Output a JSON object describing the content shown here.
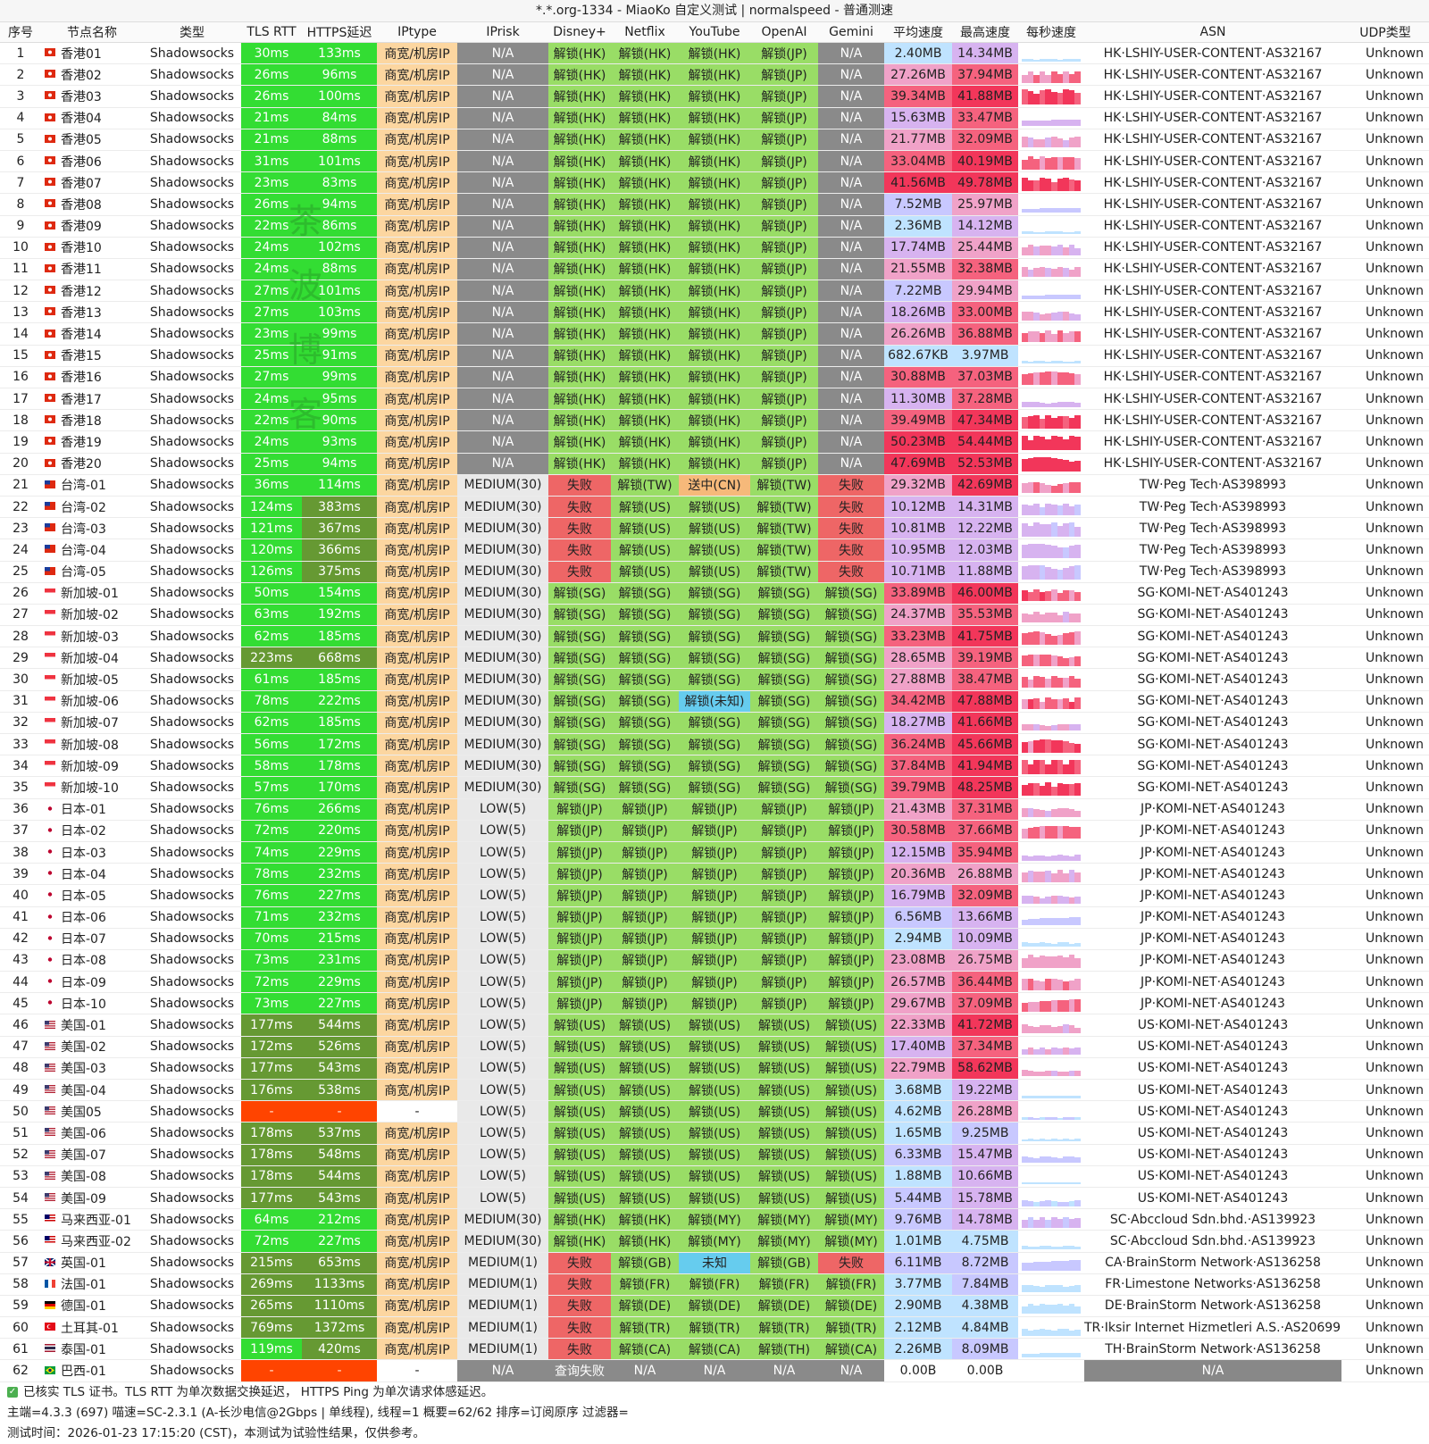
{
  "title": "*.*.org-1334 - MiaoKo 自定义测试 | normalspeed - 普通测速",
  "watermark": [
    "茶",
    "波",
    "博",
    "客"
  ],
  "headers": [
    "序号",
    "节点名称",
    "类型",
    "TLS RTT",
    "HTTPS延迟",
    "IPtype",
    "IPrisk",
    "Disney+",
    "Netflix",
    "YouTube",
    "OpenAI",
    "Gemini",
    "平均速度",
    "最高速度",
    "每秒速度",
    "ASN",
    "UDP类型"
  ],
  "colors": {
    "green": "#33dd33",
    "green_dark": "#44cc44",
    "olive": "#669933",
    "orange_red": "#ff4400",
    "iptype": "#fcd6a0",
    "gray": "#8a8a8a",
    "lightgray": "#e9e9e9",
    "unlock": "#99dd66",
    "fail": "#ee6666",
    "pending": "#f6b97a",
    "cyan": "#66ccee",
    "asn_gray": "#888888"
  },
  "rows": [
    [
      "1",
      "香港01",
      "Shadowsocks",
      "30ms",
      "133ms",
      "商宽/机房IP",
      "N/A",
      "解锁(HK)",
      "解锁(HK)",
      "解锁(HK)",
      "解锁(JP)",
      "N/A",
      "2.40MB",
      "14.34MB",
      "HK·LSHIY-USER-CONTENT·AS32167",
      "Unknown"
    ],
    [
      "2",
      "香港02",
      "Shadowsocks",
      "26ms",
      "96ms",
      "商宽/机房IP",
      "N/A",
      "解锁(HK)",
      "解锁(HK)",
      "解锁(HK)",
      "解锁(JP)",
      "N/A",
      "27.26MB",
      "37.94MB",
      "HK·LSHIY-USER-CONTENT·AS32167",
      "Unknown"
    ],
    [
      "3",
      "香港03",
      "Shadowsocks",
      "26ms",
      "100ms",
      "商宽/机房IP",
      "N/A",
      "解锁(HK)",
      "解锁(HK)",
      "解锁(HK)",
      "解锁(JP)",
      "N/A",
      "39.34MB",
      "41.88MB",
      "HK·LSHIY-USER-CONTENT·AS32167",
      "Unknown"
    ],
    [
      "4",
      "香港04",
      "Shadowsocks",
      "21ms",
      "84ms",
      "商宽/机房IP",
      "N/A",
      "解锁(HK)",
      "解锁(HK)",
      "解锁(HK)",
      "解锁(JP)",
      "N/A",
      "15.63MB",
      "33.47MB",
      "HK·LSHIY-USER-CONTENT·AS32167",
      "Unknown"
    ],
    [
      "5",
      "香港05",
      "Shadowsocks",
      "21ms",
      "88ms",
      "商宽/机房IP",
      "N/A",
      "解锁(HK)",
      "解锁(HK)",
      "解锁(HK)",
      "解锁(JP)",
      "N/A",
      "21.77MB",
      "32.09MB",
      "HK·LSHIY-USER-CONTENT·AS32167",
      "Unknown"
    ],
    [
      "6",
      "香港06",
      "Shadowsocks",
      "31ms",
      "101ms",
      "商宽/机房IP",
      "N/A",
      "解锁(HK)",
      "解锁(HK)",
      "解锁(HK)",
      "解锁(JP)",
      "N/A",
      "33.04MB",
      "40.19MB",
      "HK·LSHIY-USER-CONTENT·AS32167",
      "Unknown"
    ],
    [
      "7",
      "香港07",
      "Shadowsocks",
      "23ms",
      "83ms",
      "商宽/机房IP",
      "N/A",
      "解锁(HK)",
      "解锁(HK)",
      "解锁(HK)",
      "解锁(JP)",
      "N/A",
      "41.56MB",
      "49.78MB",
      "HK·LSHIY-USER-CONTENT·AS32167",
      "Unknown"
    ],
    [
      "8",
      "香港08",
      "Shadowsocks",
      "26ms",
      "94ms",
      "商宽/机房IP",
      "N/A",
      "解锁(HK)",
      "解锁(HK)",
      "解锁(HK)",
      "解锁(JP)",
      "N/A",
      "7.52MB",
      "25.97MB",
      "HK·LSHIY-USER-CONTENT·AS32167",
      "Unknown"
    ],
    [
      "9",
      "香港09",
      "Shadowsocks",
      "22ms",
      "86ms",
      "商宽/机房IP",
      "N/A",
      "解锁(HK)",
      "解锁(HK)",
      "解锁(HK)",
      "解锁(JP)",
      "N/A",
      "2.36MB",
      "14.12MB",
      "HK·LSHIY-USER-CONTENT·AS32167",
      "Unknown"
    ],
    [
      "10",
      "香港10",
      "Shadowsocks",
      "24ms",
      "102ms",
      "商宽/机房IP",
      "N/A",
      "解锁(HK)",
      "解锁(HK)",
      "解锁(HK)",
      "解锁(JP)",
      "N/A",
      "17.74MB",
      "25.44MB",
      "HK·LSHIY-USER-CONTENT·AS32167",
      "Unknown"
    ],
    [
      "11",
      "香港11",
      "Shadowsocks",
      "24ms",
      "88ms",
      "商宽/机房IP",
      "N/A",
      "解锁(HK)",
      "解锁(HK)",
      "解锁(HK)",
      "解锁(JP)",
      "N/A",
      "21.55MB",
      "32.38MB",
      "HK·LSHIY-USER-CONTENT·AS32167",
      "Unknown"
    ],
    [
      "12",
      "香港12",
      "Shadowsocks",
      "27ms",
      "101ms",
      "商宽/机房IP",
      "N/A",
      "解锁(HK)",
      "解锁(HK)",
      "解锁(HK)",
      "解锁(JP)",
      "N/A",
      "7.22MB",
      "29.94MB",
      "HK·LSHIY-USER-CONTENT·AS32167",
      "Unknown"
    ],
    [
      "13",
      "香港13",
      "Shadowsocks",
      "27ms",
      "103ms",
      "商宽/机房IP",
      "N/A",
      "解锁(HK)",
      "解锁(HK)",
      "解锁(HK)",
      "解锁(JP)",
      "N/A",
      "18.26MB",
      "33.00MB",
      "HK·LSHIY-USER-CONTENT·AS32167",
      "Unknown"
    ],
    [
      "14",
      "香港14",
      "Shadowsocks",
      "23ms",
      "99ms",
      "商宽/机房IP",
      "N/A",
      "解锁(HK)",
      "解锁(HK)",
      "解锁(HK)",
      "解锁(JP)",
      "N/A",
      "26.26MB",
      "36.88MB",
      "HK·LSHIY-USER-CONTENT·AS32167",
      "Unknown"
    ],
    [
      "15",
      "香港15",
      "Shadowsocks",
      "25ms",
      "91ms",
      "商宽/机房IP",
      "N/A",
      "解锁(HK)",
      "解锁(HK)",
      "解锁(HK)",
      "解锁(JP)",
      "N/A",
      "682.67KB",
      "3.97MB",
      "HK·LSHIY-USER-CONTENT·AS32167",
      "Unknown"
    ],
    [
      "16",
      "香港16",
      "Shadowsocks",
      "27ms",
      "99ms",
      "商宽/机房IP",
      "N/A",
      "解锁(HK)",
      "解锁(HK)",
      "解锁(HK)",
      "解锁(JP)",
      "N/A",
      "30.88MB",
      "37.03MB",
      "HK·LSHIY-USER-CONTENT·AS32167",
      "Unknown"
    ],
    [
      "17",
      "香港17",
      "Shadowsocks",
      "24ms",
      "95ms",
      "商宽/机房IP",
      "N/A",
      "解锁(HK)",
      "解锁(HK)",
      "解锁(HK)",
      "解锁(JP)",
      "N/A",
      "11.30MB",
      "37.28MB",
      "HK·LSHIY-USER-CONTENT·AS32167",
      "Unknown"
    ],
    [
      "18",
      "香港18",
      "Shadowsocks",
      "22ms",
      "90ms",
      "商宽/机房IP",
      "N/A",
      "解锁(HK)",
      "解锁(HK)",
      "解锁(HK)",
      "解锁(JP)",
      "N/A",
      "39.49MB",
      "47.34MB",
      "HK·LSHIY-USER-CONTENT·AS32167",
      "Unknown"
    ],
    [
      "19",
      "香港19",
      "Shadowsocks",
      "24ms",
      "93ms",
      "商宽/机房IP",
      "N/A",
      "解锁(HK)",
      "解锁(HK)",
      "解锁(HK)",
      "解锁(JP)",
      "N/A",
      "50.23MB",
      "54.44MB",
      "HK·LSHIY-USER-CONTENT·AS32167",
      "Unknown"
    ],
    [
      "20",
      "香港20",
      "Shadowsocks",
      "25ms",
      "94ms",
      "商宽/机房IP",
      "N/A",
      "解锁(HK)",
      "解锁(HK)",
      "解锁(HK)",
      "解锁(JP)",
      "N/A",
      "47.69MB",
      "52.53MB",
      "HK·LSHIY-USER-CONTENT·AS32167",
      "Unknown"
    ],
    [
      "21",
      "台湾-01",
      "Shadowsocks",
      "36ms",
      "114ms",
      "商宽/机房IP",
      "MEDIUM(30)",
      "失败",
      "解锁(TW)",
      "送中(CN)",
      "解锁(TW)",
      "失败",
      "29.32MB",
      "42.69MB",
      "TW·Peg Tech·AS398993",
      "Unknown"
    ],
    [
      "22",
      "台湾-02",
      "Shadowsocks",
      "124ms",
      "383ms",
      "商宽/机房IP",
      "MEDIUM(30)",
      "失败",
      "解锁(US)",
      "解锁(US)",
      "解锁(TW)",
      "失败",
      "10.12MB",
      "14.31MB",
      "TW·Peg Tech·AS398993",
      "Unknown"
    ],
    [
      "23",
      "台湾-03",
      "Shadowsocks",
      "121ms",
      "367ms",
      "商宽/机房IP",
      "MEDIUM(30)",
      "失败",
      "解锁(US)",
      "解锁(US)",
      "解锁(TW)",
      "失败",
      "10.81MB",
      "12.22MB",
      "TW·Peg Tech·AS398993",
      "Unknown"
    ],
    [
      "24",
      "台湾-04",
      "Shadowsocks",
      "120ms",
      "366ms",
      "商宽/机房IP",
      "MEDIUM(30)",
      "失败",
      "解锁(US)",
      "解锁(US)",
      "解锁(TW)",
      "失败",
      "10.95MB",
      "12.03MB",
      "TW·Peg Tech·AS398993",
      "Unknown"
    ],
    [
      "25",
      "台湾-05",
      "Shadowsocks",
      "126ms",
      "375ms",
      "商宽/机房IP",
      "MEDIUM(30)",
      "失败",
      "解锁(US)",
      "解锁(US)",
      "解锁(TW)",
      "失败",
      "10.71MB",
      "11.88MB",
      "TW·Peg Tech·AS398993",
      "Unknown"
    ],
    [
      "26",
      "新加坡-01",
      "Shadowsocks",
      "50ms",
      "154ms",
      "商宽/机房IP",
      "MEDIUM(30)",
      "解锁(SG)",
      "解锁(SG)",
      "解锁(SG)",
      "解锁(SG)",
      "解锁(SG)",
      "33.89MB",
      "46.00MB",
      "SG·KOMI-NET·AS401243",
      "Unknown"
    ],
    [
      "27",
      "新加坡-02",
      "Shadowsocks",
      "63ms",
      "192ms",
      "商宽/机房IP",
      "MEDIUM(30)",
      "解锁(SG)",
      "解锁(SG)",
      "解锁(SG)",
      "解锁(SG)",
      "解锁(SG)",
      "24.37MB",
      "35.53MB",
      "SG·KOMI-NET·AS401243",
      "Unknown"
    ],
    [
      "28",
      "新加坡-03",
      "Shadowsocks",
      "62ms",
      "185ms",
      "商宽/机房IP",
      "MEDIUM(30)",
      "解锁(SG)",
      "解锁(SG)",
      "解锁(SG)",
      "解锁(SG)",
      "解锁(SG)",
      "33.23MB",
      "41.75MB",
      "SG·KOMI-NET·AS401243",
      "Unknown"
    ],
    [
      "29",
      "新加坡-04",
      "Shadowsocks",
      "223ms",
      "668ms",
      "商宽/机房IP",
      "MEDIUM(30)",
      "解锁(SG)",
      "解锁(SG)",
      "解锁(SG)",
      "解锁(SG)",
      "解锁(SG)",
      "28.65MB",
      "39.19MB",
      "SG·KOMI-NET·AS401243",
      "Unknown"
    ],
    [
      "30",
      "新加坡-05",
      "Shadowsocks",
      "61ms",
      "185ms",
      "商宽/机房IP",
      "MEDIUM(30)",
      "解锁(SG)",
      "解锁(SG)",
      "解锁(SG)",
      "解锁(SG)",
      "解锁(SG)",
      "27.88MB",
      "38.47MB",
      "SG·KOMI-NET·AS401243",
      "Unknown"
    ],
    [
      "31",
      "新加坡-06",
      "Shadowsocks",
      "78ms",
      "222ms",
      "商宽/机房IP",
      "MEDIUM(30)",
      "解锁(SG)",
      "解锁(SG)",
      "解锁(未知)",
      "解锁(SG)",
      "解锁(SG)",
      "34.42MB",
      "47.88MB",
      "SG·KOMI-NET·AS401243",
      "Unknown"
    ],
    [
      "32",
      "新加坡-07",
      "Shadowsocks",
      "62ms",
      "185ms",
      "商宽/机房IP",
      "MEDIUM(30)",
      "解锁(SG)",
      "解锁(SG)",
      "解锁(SG)",
      "解锁(SG)",
      "解锁(SG)",
      "18.27MB",
      "41.66MB",
      "SG·KOMI-NET·AS401243",
      "Unknown"
    ],
    [
      "33",
      "新加坡-08",
      "Shadowsocks",
      "56ms",
      "172ms",
      "商宽/机房IP",
      "MEDIUM(30)",
      "解锁(SG)",
      "解锁(SG)",
      "解锁(SG)",
      "解锁(SG)",
      "解锁(SG)",
      "36.24MB",
      "45.66MB",
      "SG·KOMI-NET·AS401243",
      "Unknown"
    ],
    [
      "34",
      "新加坡-09",
      "Shadowsocks",
      "58ms",
      "178ms",
      "商宽/机房IP",
      "MEDIUM(30)",
      "解锁(SG)",
      "解锁(SG)",
      "解锁(SG)",
      "解锁(SG)",
      "解锁(SG)",
      "37.84MB",
      "41.94MB",
      "SG·KOMI-NET·AS401243",
      "Unknown"
    ],
    [
      "35",
      "新加坡-10",
      "Shadowsocks",
      "57ms",
      "170ms",
      "商宽/机房IP",
      "MEDIUM(30)",
      "解锁(SG)",
      "解锁(SG)",
      "解锁(SG)",
      "解锁(SG)",
      "解锁(SG)",
      "39.79MB",
      "48.25MB",
      "SG·KOMI-NET·AS401243",
      "Unknown"
    ],
    [
      "36",
      "日本-01",
      "Shadowsocks",
      "76ms",
      "266ms",
      "商宽/机房IP",
      "LOW(5)",
      "解锁(JP)",
      "解锁(JP)",
      "解锁(JP)",
      "解锁(JP)",
      "解锁(JP)",
      "21.43MB",
      "37.31MB",
      "JP·KOMI-NET·AS401243",
      "Unknown"
    ],
    [
      "37",
      "日本-02",
      "Shadowsocks",
      "72ms",
      "220ms",
      "商宽/机房IP",
      "LOW(5)",
      "解锁(JP)",
      "解锁(JP)",
      "解锁(JP)",
      "解锁(JP)",
      "解锁(JP)",
      "30.58MB",
      "37.66MB",
      "JP·KOMI-NET·AS401243",
      "Unknown"
    ],
    [
      "38",
      "日本-03",
      "Shadowsocks",
      "74ms",
      "229ms",
      "商宽/机房IP",
      "LOW(5)",
      "解锁(JP)",
      "解锁(JP)",
      "解锁(JP)",
      "解锁(JP)",
      "解锁(JP)",
      "12.15MB",
      "35.94MB",
      "JP·KOMI-NET·AS401243",
      "Unknown"
    ],
    [
      "39",
      "日本-04",
      "Shadowsocks",
      "78ms",
      "232ms",
      "商宽/机房IP",
      "LOW(5)",
      "解锁(JP)",
      "解锁(JP)",
      "解锁(JP)",
      "解锁(JP)",
      "解锁(JP)",
      "20.36MB",
      "26.88MB",
      "JP·KOMI-NET·AS401243",
      "Unknown"
    ],
    [
      "40",
      "日本-05",
      "Shadowsocks",
      "76ms",
      "227ms",
      "商宽/机房IP",
      "LOW(5)",
      "解锁(JP)",
      "解锁(JP)",
      "解锁(JP)",
      "解锁(JP)",
      "解锁(JP)",
      "16.79MB",
      "32.09MB",
      "JP·KOMI-NET·AS401243",
      "Unknown"
    ],
    [
      "41",
      "日本-06",
      "Shadowsocks",
      "71ms",
      "232ms",
      "商宽/机房IP",
      "LOW(5)",
      "解锁(JP)",
      "解锁(JP)",
      "解锁(JP)",
      "解锁(JP)",
      "解锁(JP)",
      "6.56MB",
      "13.66MB",
      "JP·KOMI-NET·AS401243",
      "Unknown"
    ],
    [
      "42",
      "日本-07",
      "Shadowsocks",
      "70ms",
      "215ms",
      "商宽/机房IP",
      "LOW(5)",
      "解锁(JP)",
      "解锁(JP)",
      "解锁(JP)",
      "解锁(JP)",
      "解锁(JP)",
      "2.94MB",
      "10.09MB",
      "JP·KOMI-NET·AS401243",
      "Unknown"
    ],
    [
      "43",
      "日本-08",
      "Shadowsocks",
      "73ms",
      "231ms",
      "商宽/机房IP",
      "LOW(5)",
      "解锁(JP)",
      "解锁(JP)",
      "解锁(JP)",
      "解锁(JP)",
      "解锁(JP)",
      "23.08MB",
      "26.75MB",
      "JP·KOMI-NET·AS401243",
      "Unknown"
    ],
    [
      "44",
      "日本-09",
      "Shadowsocks",
      "72ms",
      "229ms",
      "商宽/机房IP",
      "LOW(5)",
      "解锁(JP)",
      "解锁(JP)",
      "解锁(JP)",
      "解锁(JP)",
      "解锁(JP)",
      "26.57MB",
      "36.44MB",
      "JP·KOMI-NET·AS401243",
      "Unknown"
    ],
    [
      "45",
      "日本-10",
      "Shadowsocks",
      "73ms",
      "227ms",
      "商宽/机房IP",
      "LOW(5)",
      "解锁(JP)",
      "解锁(JP)",
      "解锁(JP)",
      "解锁(JP)",
      "解锁(JP)",
      "29.67MB",
      "37.09MB",
      "JP·KOMI-NET·AS401243",
      "Unknown"
    ],
    [
      "46",
      "美国-01",
      "Shadowsocks",
      "177ms",
      "544ms",
      "商宽/机房IP",
      "LOW(5)",
      "解锁(US)",
      "解锁(US)",
      "解锁(US)",
      "解锁(US)",
      "解锁(US)",
      "22.33MB",
      "41.72MB",
      "US·KOMI-NET·AS401243",
      "Unknown"
    ],
    [
      "47",
      "美国-02",
      "Shadowsocks",
      "172ms",
      "526ms",
      "商宽/机房IP",
      "LOW(5)",
      "解锁(US)",
      "解锁(US)",
      "解锁(US)",
      "解锁(US)",
      "解锁(US)",
      "17.40MB",
      "37.34MB",
      "US·KOMI-NET·AS401243",
      "Unknown"
    ],
    [
      "48",
      "美国-03",
      "Shadowsocks",
      "177ms",
      "543ms",
      "商宽/机房IP",
      "LOW(5)",
      "解锁(US)",
      "解锁(US)",
      "解锁(US)",
      "解锁(US)",
      "解锁(US)",
      "22.79MB",
      "58.62MB",
      "US·KOMI-NET·AS401243",
      "Unknown"
    ],
    [
      "49",
      "美国-04",
      "Shadowsocks",
      "176ms",
      "538ms",
      "商宽/机房IP",
      "LOW(5)",
      "解锁(US)",
      "解锁(US)",
      "解锁(US)",
      "解锁(US)",
      "解锁(US)",
      "3.68MB",
      "19.22MB",
      "US·KOMI-NET·AS401243",
      "Unknown"
    ],
    [
      "50",
      "美国05",
      "Shadowsocks",
      "-",
      "-",
      "-",
      "LOW(5)",
      "解锁(US)",
      "解锁(US)",
      "解锁(US)",
      "解锁(US)",
      "解锁(US)",
      "4.62MB",
      "26.28MB",
      "US·KOMI-NET·AS401243",
      "Unknown"
    ],
    [
      "51",
      "美国-06",
      "Shadowsocks",
      "178ms",
      "537ms",
      "商宽/机房IP",
      "LOW(5)",
      "解锁(US)",
      "解锁(US)",
      "解锁(US)",
      "解锁(US)",
      "解锁(US)",
      "1.65MB",
      "9.25MB",
      "US·KOMI-NET·AS401243",
      "Unknown"
    ],
    [
      "52",
      "美国-07",
      "Shadowsocks",
      "178ms",
      "548ms",
      "商宽/机房IP",
      "LOW(5)",
      "解锁(US)",
      "解锁(US)",
      "解锁(US)",
      "解锁(US)",
      "解锁(US)",
      "6.33MB",
      "15.47MB",
      "US·KOMI-NET·AS401243",
      "Unknown"
    ],
    [
      "53",
      "美国-08",
      "Shadowsocks",
      "178ms",
      "544ms",
      "商宽/机房IP",
      "LOW(5)",
      "解锁(US)",
      "解锁(US)",
      "解锁(US)",
      "解锁(US)",
      "解锁(US)",
      "1.88MB",
      "10.66MB",
      "US·KOMI-NET·AS401243",
      "Unknown"
    ],
    [
      "54",
      "美国-09",
      "Shadowsocks",
      "177ms",
      "543ms",
      "商宽/机房IP",
      "LOW(5)",
      "解锁(US)",
      "解锁(US)",
      "解锁(US)",
      "解锁(US)",
      "解锁(US)",
      "5.44MB",
      "15.78MB",
      "US·KOMI-NET·AS401243",
      "Unknown"
    ],
    [
      "55",
      "马来西亚-01",
      "Shadowsocks",
      "64ms",
      "212ms",
      "商宽/机房IP",
      "MEDIUM(30)",
      "解锁(HK)",
      "解锁(HK)",
      "解锁(MY)",
      "解锁(MY)",
      "解锁(MY)",
      "9.76MB",
      "14.78MB",
      "SC·Abccloud Sdn.bhd.·AS139923",
      "Unknown"
    ],
    [
      "56",
      "马来西亚-02",
      "Shadowsocks",
      "72ms",
      "227ms",
      "商宽/机房IP",
      "MEDIUM(30)",
      "解锁(HK)",
      "解锁(HK)",
      "解锁(MY)",
      "解锁(MY)",
      "解锁(MY)",
      "1.01MB",
      "4.75MB",
      "SC·Abccloud Sdn.bhd.·AS139923",
      "Unknown"
    ],
    [
      "57",
      "英国-01",
      "Shadowsocks",
      "215ms",
      "653ms",
      "商宽/机房IP",
      "MEDIUM(1)",
      "失败",
      "解锁(GB)",
      "未知",
      "解锁(GB)",
      "失败",
      "6.11MB",
      "8.72MB",
      "CA·BrainStorm Network·AS136258",
      "Unknown"
    ],
    [
      "58",
      "法国-01",
      "Shadowsocks",
      "269ms",
      "1133ms",
      "商宽/机房IP",
      "MEDIUM(1)",
      "失败",
      "解锁(FR)",
      "解锁(FR)",
      "解锁(FR)",
      "解锁(FR)",
      "3.77MB",
      "7.84MB",
      "FR·Limestone Networks·AS136258",
      "Unknown"
    ],
    [
      "59",
      "德国-01",
      "Shadowsocks",
      "265ms",
      "1110ms",
      "商宽/机房IP",
      "MEDIUM(1)",
      "失败",
      "解锁(DE)",
      "解锁(DE)",
      "解锁(DE)",
      "解锁(DE)",
      "2.90MB",
      "4.38MB",
      "DE·BrainStorm Network·AS136258",
      "Unknown"
    ],
    [
      "60",
      "土耳其-01",
      "Shadowsocks",
      "769ms",
      "1372ms",
      "商宽/机房IP",
      "MEDIUM(1)",
      "失败",
      "解锁(TR)",
      "解锁(TR)",
      "解锁(TR)",
      "解锁(TR)",
      "2.12MB",
      "4.84MB",
      "TR·Iksir Internet Hizmetleri A.S.·AS206991",
      "Unknown"
    ],
    [
      "61",
      "泰国-01",
      "Shadowsocks",
      "119ms",
      "420ms",
      "商宽/机房IP",
      "MEDIUM(1)",
      "失败",
      "解锁(CA)",
      "解锁(CA)",
      "解锁(TH)",
      "解锁(CA)",
      "2.26MB",
      "8.09MB",
      "TH·BrainStorm Network·AS136258",
      "Unknown"
    ],
    [
      "62",
      "巴西-01",
      "Shadowsocks",
      "-",
      "-",
      "-",
      "N/A",
      "查询失败",
      "N/A",
      "N/A",
      "N/A",
      "N/A",
      "0.00B",
      "0.00B",
      "N/A",
      "Unknown"
    ]
  ],
  "footer": {
    "line1": "已核实 TLS 证书。TLS RTT 为单次数据交换延迟， HTTPS Ping 为单次请求体感延迟。",
    "line2": "主端=4.3.3 (697) 喵速=SC-2.3.1 (A-长沙电信@2Gbps | 单线程), 线程=1 概要=62/62 排序=订阅原序 过滤器=",
    "line3": "测试时间：2026-01-23 17:15:20 (CST)，本测试为试验性结果，仅供参考。"
  }
}
